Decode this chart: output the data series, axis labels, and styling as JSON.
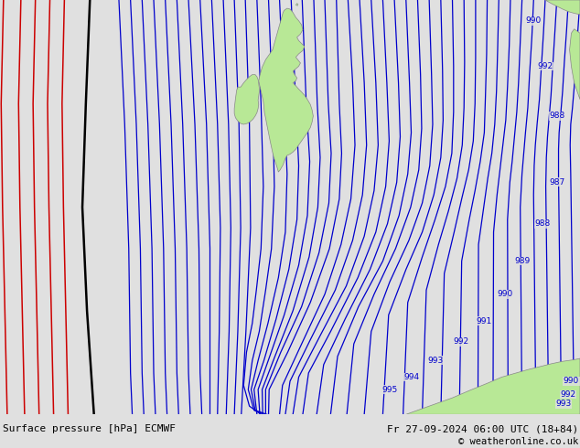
{
  "title_left": "Surface pressure [hPa] ECMWF",
  "title_right": "Fr 27-09-2024 06:00 UTC (18+84)",
  "copyright": "© weatheronline.co.uk",
  "bg_color": "#e0e0e0",
  "land_color": "#b8e896",
  "border_color": "#888888",
  "isobar_color_blue": "#0000cc",
  "isobar_color_red": "#cc0000",
  "isobar_color_black": "#000000",
  "figsize": [
    6.34,
    4.9
  ],
  "dpi": 100
}
